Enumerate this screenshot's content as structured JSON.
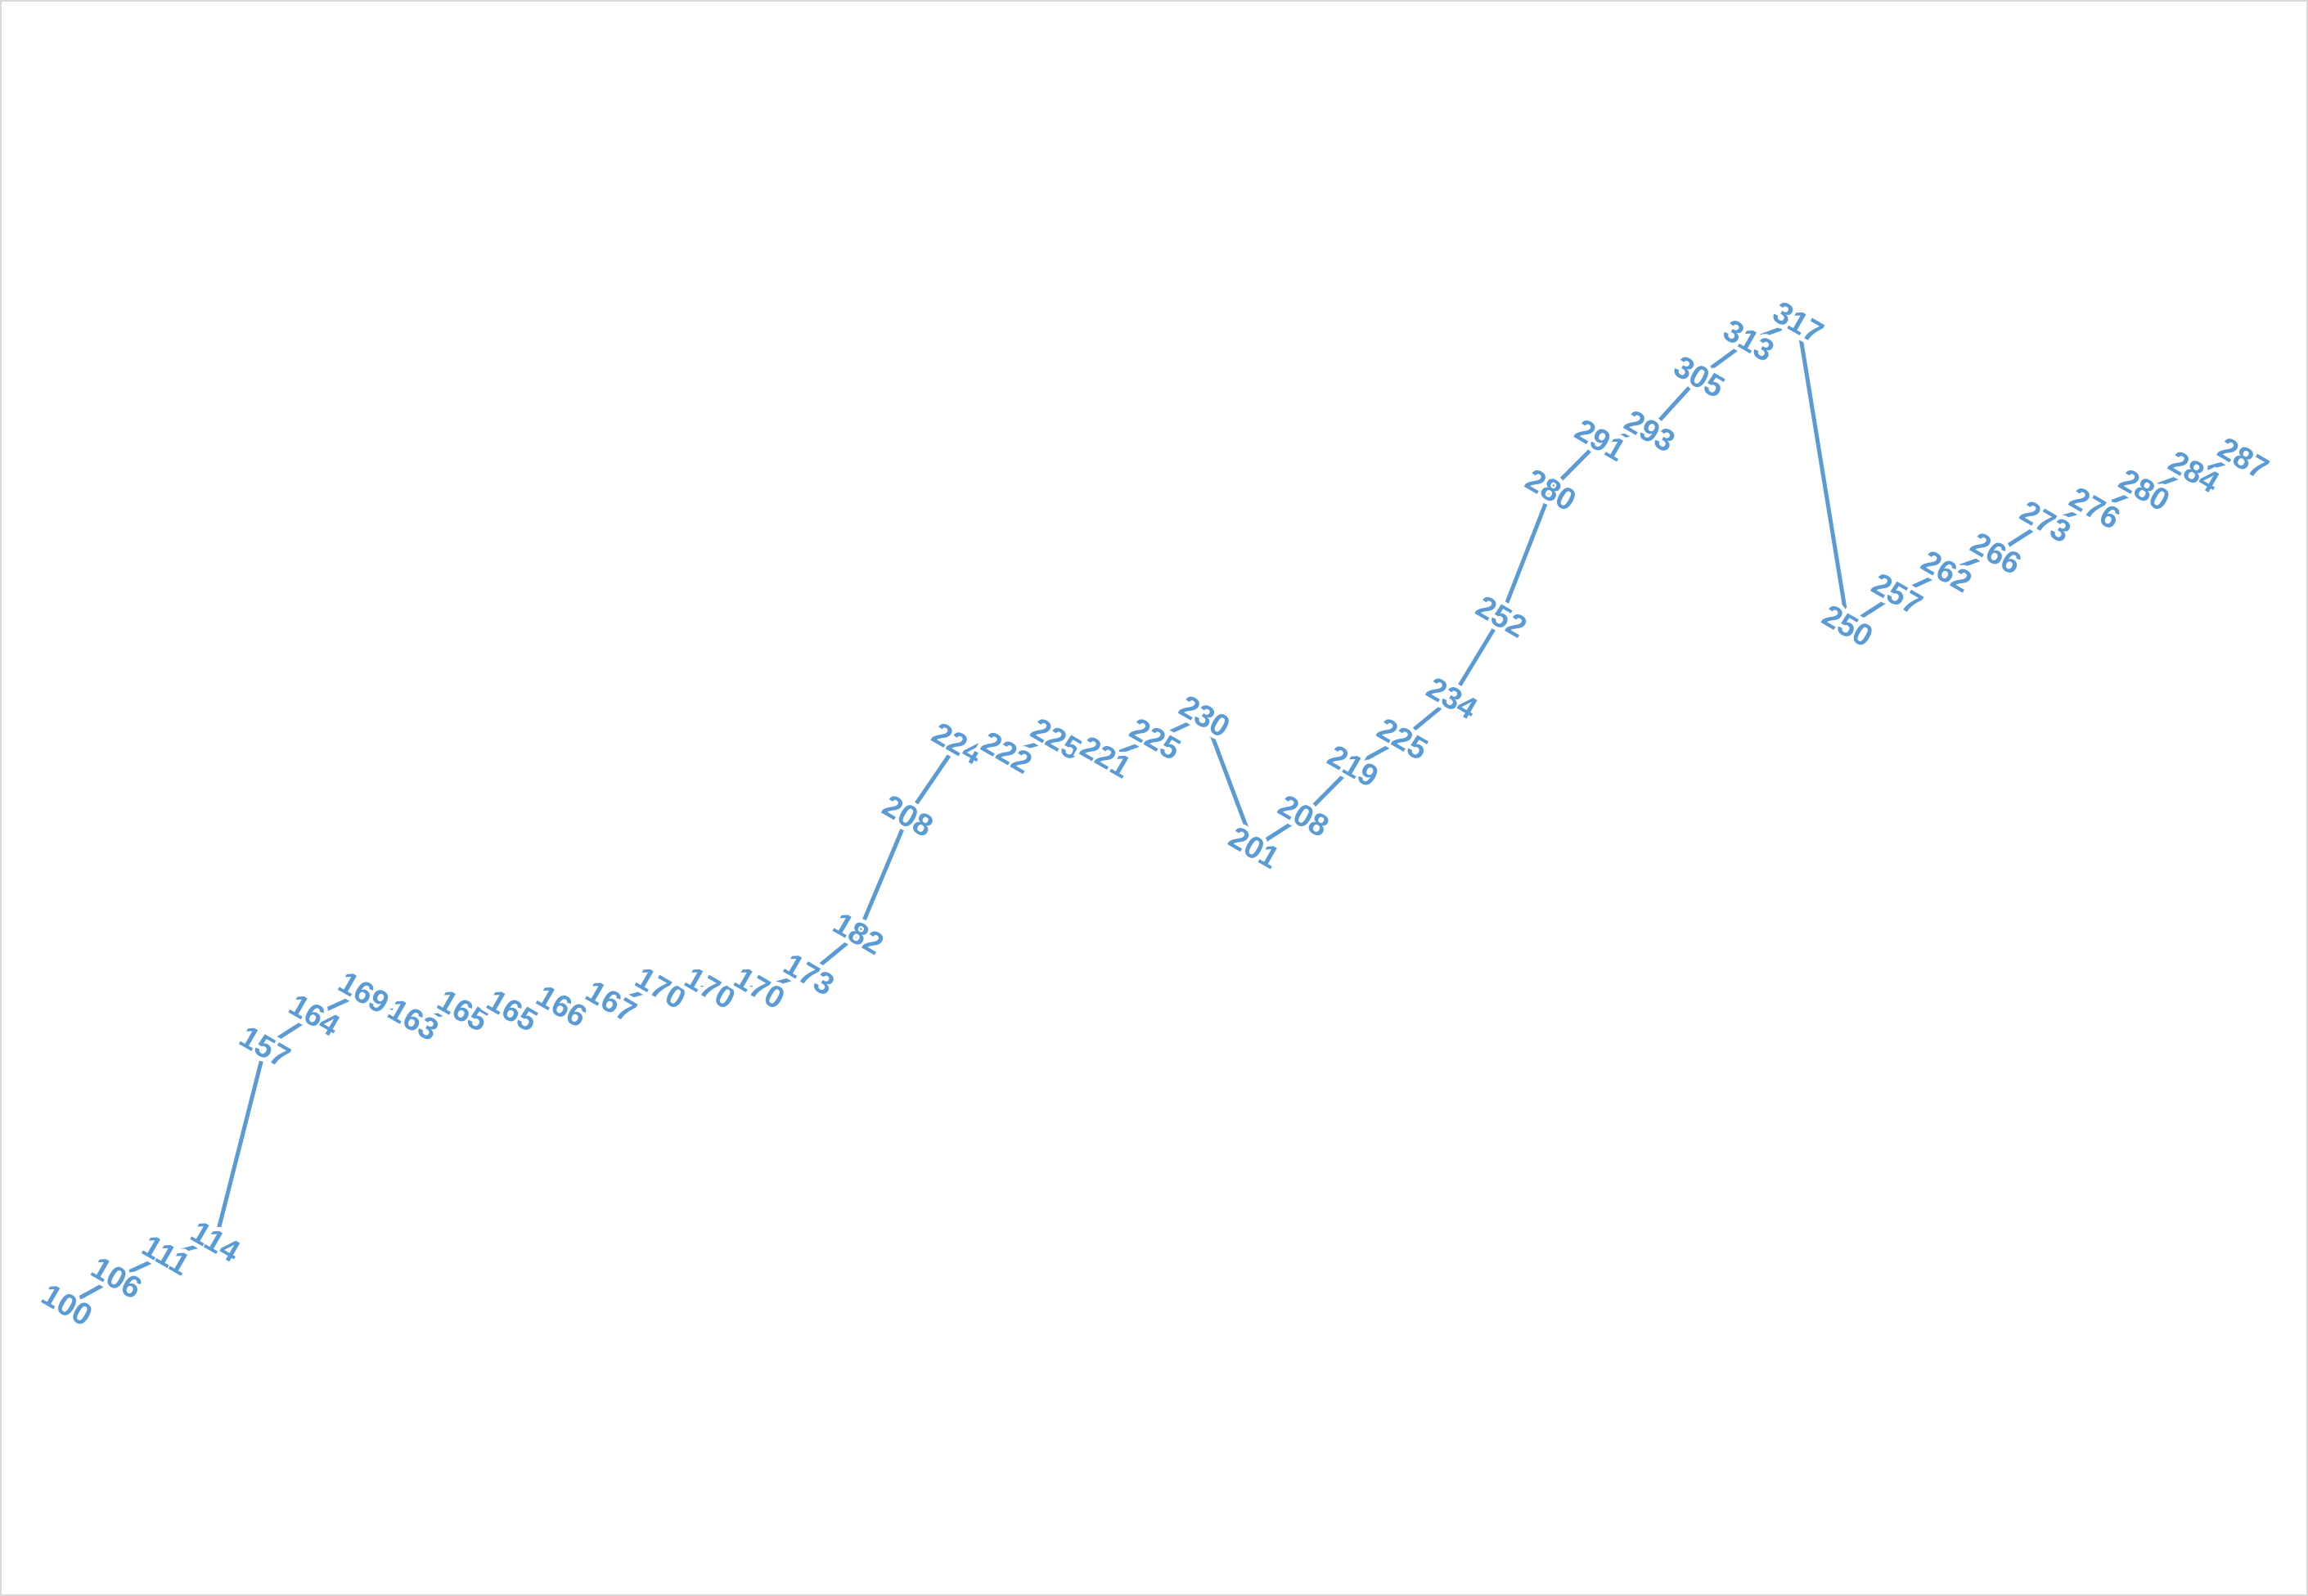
{
  "chart_data": {
    "type": "line",
    "title": "",
    "xlabel": "",
    "ylabel": "",
    "values": [
      100,
      106,
      111,
      114,
      157,
      164,
      169,
      163,
      165,
      165,
      166,
      167,
      170,
      170,
      170,
      173,
      182,
      208,
      224,
      222,
      225,
      221,
      225,
      230,
      201,
      208,
      219,
      225,
      234,
      252,
      280,
      291,
      293,
      305,
      313,
      317,
      250,
      257,
      262,
      266,
      273,
      276,
      280,
      284,
      287
    ],
    "ylim": [
      100,
      317
    ],
    "axes_visible": false,
    "grid": false,
    "legend": "none",
    "data_labels": true,
    "line_color": "#5b9bd5",
    "label_color": "#5b9bd5"
  }
}
